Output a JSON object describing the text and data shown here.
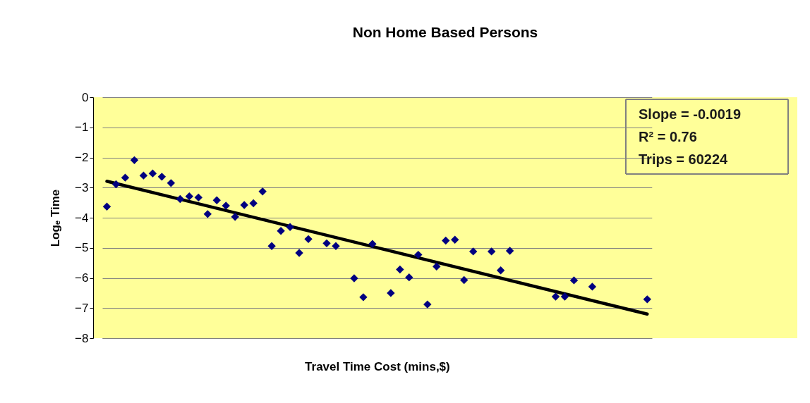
{
  "chart_data": {
    "type": "scatter",
    "title": "Non Home Based Persons",
    "xlabel": "Travel Time Cost (mins,$)",
    "ylabel": "Logₑ Time",
    "categories": [
      null,
      null,
      null,
      null,
      null,
      null,
      null,
      null,
      null,
      null,
      null,
      null,
      null,
      null,
      null,
      null,
      null,
      null,
      null,
      null,
      null,
      null,
      null,
      null,
      null,
      null,
      null,
      null,
      null,
      null,
      null,
      null,
      null,
      null,
      null,
      null,
      null,
      null,
      null,
      null,
      null,
      null,
      null,
      null,
      null,
      null,
      null,
      null,
      null,
      null,
      null,
      null,
      null,
      null,
      null,
      null,
      null,
      null,
      null,
      null
    ],
    "series": [
      {
        "color": "#000080",
        "values": [
          -3.63,
          -2.89,
          -2.67,
          -2.09,
          -2.6,
          -2.53,
          -2.64,
          -2.85,
          -3.38,
          -3.29,
          -3.33,
          -3.88,
          -3.42,
          -3.6,
          -3.97,
          -3.58,
          -3.52,
          -3.13,
          -4.94,
          -4.44,
          -4.31,
          -5.17,
          -4.71,
          null,
          -4.85,
          -4.94,
          null,
          -6.01,
          -6.64,
          -4.87,
          null,
          -6.5,
          -5.72,
          -5.98,
          -5.23,
          -6.88,
          -5.62,
          -4.76,
          -4.73,
          -6.07,
          -5.12,
          null,
          -5.12,
          -5.75,
          -5.1,
          null,
          null,
          null,
          null,
          -6.62,
          -6.62,
          -6.08,
          null,
          -6.29,
          null,
          null,
          null,
          null,
          null,
          -6.71
        ]
      },
      {
        "type": "line",
        "marker": "none",
        "color": "#000000",
        "values": [
          -2.79,
          null,
          null,
          null,
          null,
          null,
          null,
          null,
          null,
          null,
          null,
          null,
          null,
          null,
          null,
          null,
          null,
          null,
          null,
          null,
          null,
          null,
          null,
          null,
          null,
          null,
          null,
          null,
          null,
          null,
          null,
          null,
          null,
          null,
          null,
          null,
          null,
          null,
          null,
          null,
          null,
          null,
          null,
          null,
          null,
          null,
          null,
          null,
          null,
          null,
          null,
          null,
          null,
          null,
          null,
          null,
          null,
          null,
          null,
          -7.2
        ]
      }
    ],
    "ylim": [
      -8,
      0
    ],
    "yticks": [
      -8,
      -7,
      -6,
      -5,
      -4,
      -3,
      -2,
      -1,
      0
    ],
    "grid": "y",
    "tick_labels": "y",
    "marker": "diamond",
    "line_style": "solid",
    "annotations": [
      "Slope = -0.0019",
      "R² = 0.76",
      "Trips = 60224"
    ]
  }
}
